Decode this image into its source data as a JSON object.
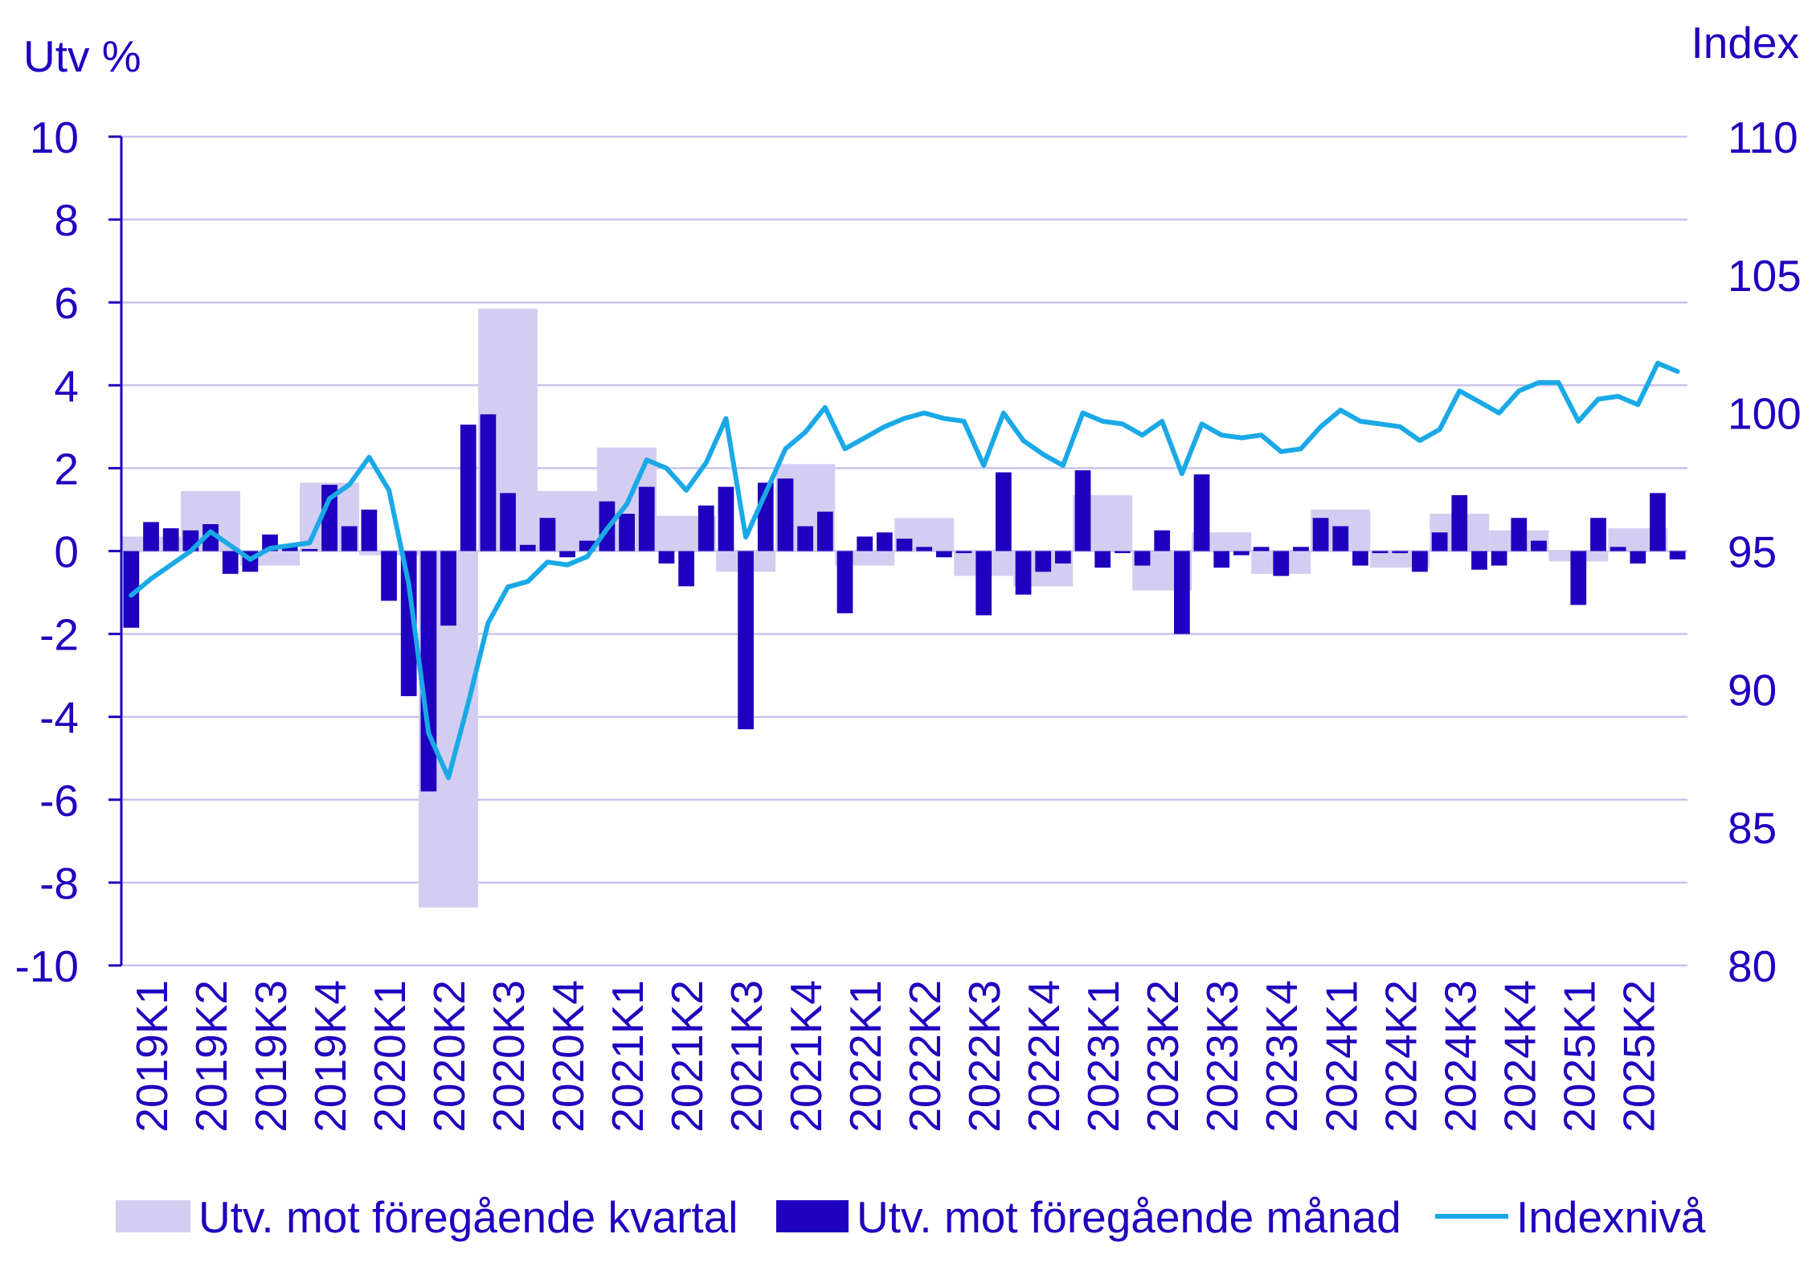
{
  "colors": {
    "text": "#1e00be",
    "axis": "#1e00be",
    "grid": "#c9c4ec"
  },
  "chart_data": {
    "type": "bar",
    "ylabel": "Utv %",
    "y2label": "Index",
    "ylim": [
      -10,
      10
    ],
    "y2lim": [
      80,
      110
    ],
    "y_ticks": [
      "10",
      "8",
      "6",
      "4",
      "2",
      "0",
      "-2",
      "-4",
      "-6",
      "-8",
      "-10"
    ],
    "y2_ticks": [
      "110",
      "105",
      "100",
      "95",
      "90",
      "85",
      "80"
    ],
    "x_tick_labels": [
      "2019K1",
      "2019K2",
      "2019K3",
      "2019K4",
      "2020K1",
      "2020K2",
      "2020K3",
      "2020K4",
      "2021K1",
      "2021K2",
      "2021K3",
      "2021K4",
      "2022K1",
      "2022K2",
      "2022K3",
      "2022K4",
      "2023K1",
      "2023K2",
      "2023K3",
      "2023K4",
      "2024K1",
      "2024K2",
      "2024K3",
      "2024K4",
      "2025K1",
      "2025K2"
    ],
    "grid": true,
    "legend": "bottom",
    "series": [
      {
        "name": "Utv. mot föregående kvartal",
        "type": "bar",
        "axis": "left",
        "color": "#d3cef1",
        "values": [
          0.35,
          1.45,
          -0.35,
          1.65,
          -0.1,
          -8.6,
          5.85,
          1.45,
          2.5,
          0.85,
          -0.5,
          2.1,
          -0.35,
          0.8,
          -0.6,
          -0.85,
          1.35,
          -0.95,
          0.45,
          -0.55,
          1.0,
          -0.4,
          0.9,
          0.5,
          -0.25,
          0.55
        ]
      },
      {
        "name": "Utv. mot föregående månad",
        "type": "bar",
        "axis": "left",
        "color": "#1e00be",
        "values": [
          -1.85,
          0.7,
          0.55,
          0.5,
          0.65,
          -0.55,
          -0.5,
          0.4,
          0.1,
          0.05,
          1.6,
          0.6,
          1.0,
          -1.2,
          -3.5,
          -5.8,
          -1.8,
          3.05,
          3.3,
          1.4,
          0.15,
          0.8,
          -0.15,
          0.25,
          1.2,
          0.9,
          1.55,
          -0.3,
          -0.85,
          1.1,
          1.55,
          -4.3,
          1.65,
          1.75,
          0.6,
          0.95,
          -1.5,
          0.35,
          0.45,
          0.3,
          0.1,
          -0.15,
          -0.05,
          -1.55,
          1.9,
          -1.05,
          -0.5,
          -0.3,
          1.95,
          -0.4,
          -0.05,
          -0.35,
          0.5,
          -2.0,
          1.85,
          -0.4,
          -0.1,
          0.1,
          -0.6,
          0.1,
          0.8,
          0.6,
          -0.35,
          -0.05,
          -0.05,
          -0.5,
          0.45,
          1.35,
          -0.45,
          -0.35,
          0.8,
          0.25,
          0.0,
          -1.3,
          0.8,
          0.1,
          -0.3,
          1.4,
          -0.2
        ]
      },
      {
        "name": "Indexnivå",
        "type": "line",
        "axis": "right",
        "color": "#1aa9e6",
        "values": [
          93.4,
          94.0,
          94.5,
          95.0,
          95.7,
          95.2,
          94.7,
          95.1,
          95.2,
          95.3,
          96.9,
          97.4,
          98.4,
          97.2,
          93.8,
          88.4,
          86.8,
          89.5,
          92.4,
          93.7,
          93.9,
          94.6,
          94.5,
          94.8,
          95.8,
          96.7,
          98.3,
          98.0,
          97.2,
          98.2,
          99.8,
          95.5,
          97.1,
          98.7,
          99.3,
          100.2,
          98.7,
          99.1,
          99.5,
          99.8,
          100.0,
          99.8,
          99.7,
          98.1,
          100.0,
          99.0,
          98.5,
          98.1,
          100.0,
          99.7,
          99.6,
          99.2,
          99.7,
          97.8,
          99.6,
          99.2,
          99.1,
          99.2,
          98.6,
          98.7,
          99.5,
          100.1,
          99.7,
          99.6,
          99.5,
          99.0,
          99.4,
          100.8,
          100.4,
          100.0,
          100.8,
          101.1,
          101.1,
          99.7,
          100.5,
          100.6,
          100.3,
          101.8,
          101.5
        ]
      }
    ]
  }
}
